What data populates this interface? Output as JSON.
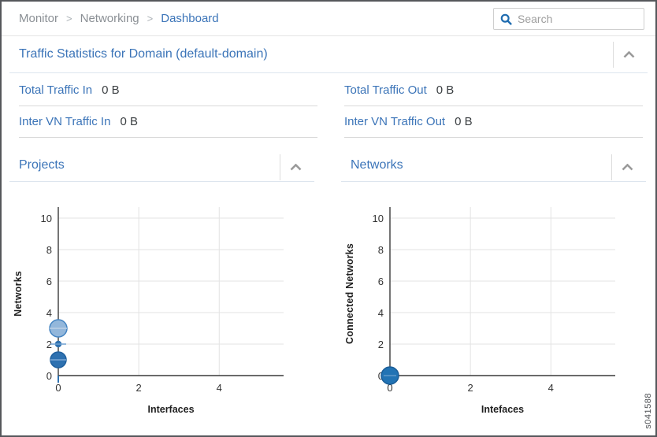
{
  "breadcrumb": {
    "separator": ">",
    "items": [
      {
        "label": "Monitor"
      },
      {
        "label": "Networking"
      },
      {
        "label": "Dashboard"
      }
    ]
  },
  "search": {
    "placeholder": "Search"
  },
  "traffic_section": {
    "title": "Traffic Statistics for Domain (default-domain)",
    "collapse_icon": "chevron-up-icon",
    "stats": [
      {
        "label": "Total Traffic In",
        "value": "0 B"
      },
      {
        "label": "Total Traffic Out",
        "value": "0 B"
      },
      {
        "label": "Inter VN Traffic In",
        "value": "0 B"
      },
      {
        "label": "Inter VN Traffic Out",
        "value": "0 B"
      }
    ]
  },
  "panels": [
    {
      "title": "Projects",
      "collapse_icon": "chevron-up-icon"
    },
    {
      "title": "Networks",
      "collapse_icon": "chevron-up-icon"
    }
  ],
  "watermark": "s041588",
  "colors": {
    "link_blue": "#3b74b8",
    "bubble_light_fill": "#93b7db",
    "bubble_light_stroke": "#4484c2",
    "bubble_dark_fill": "#2e71b0",
    "bubble_dark_stroke": "#20619f",
    "axis": "#3a3a3a",
    "gridline": "#e3e3e3"
  },
  "chart_data": [
    {
      "type": "scatter",
      "title": "Projects",
      "xlabel": "Interfaces",
      "ylabel": "Networks",
      "xlim": [
        0,
        5.6
      ],
      "ylim": [
        0,
        10.7
      ],
      "xticks": [
        0,
        2,
        4
      ],
      "yticks": [
        0,
        2,
        4,
        6,
        8,
        10
      ],
      "grid": true,
      "origin_tick_color": "#2e71b0",
      "points": [
        {
          "x": 0,
          "y": 3,
          "r": 11,
          "fill": "#93b7db",
          "stroke": "#4484c2",
          "dash_color": "#bcd1e6",
          "dash_len": 11
        },
        {
          "x": 0,
          "y": 2,
          "r": 3.5,
          "fill": "#2e71b0",
          "stroke": "#2e71b0",
          "dash_color": "#6f9fd0",
          "dash_len": 10
        },
        {
          "x": 0,
          "y": 1,
          "r": 10,
          "fill": "#2e71b0",
          "stroke": "#20619f",
          "dash_color": "#7ca8d4",
          "dash_len": 10
        }
      ]
    },
    {
      "type": "scatter",
      "title": "Networks",
      "xlabel": "Intefaces",
      "ylabel": "Connected Networks",
      "xlim": [
        0,
        5.6
      ],
      "ylim": [
        0,
        10.7
      ],
      "xticks": [
        0,
        2,
        4
      ],
      "yticks": [
        0,
        2,
        4,
        6,
        8,
        10
      ],
      "grid": true,
      "origin_tick_color": "#2e71b0",
      "points": [
        {
          "x": 0,
          "y": 0,
          "r": 11,
          "fill": "#2173b4",
          "stroke": "#1b5d97",
          "dash_color": "#5d97c8",
          "dash_len": 8
        }
      ]
    }
  ]
}
